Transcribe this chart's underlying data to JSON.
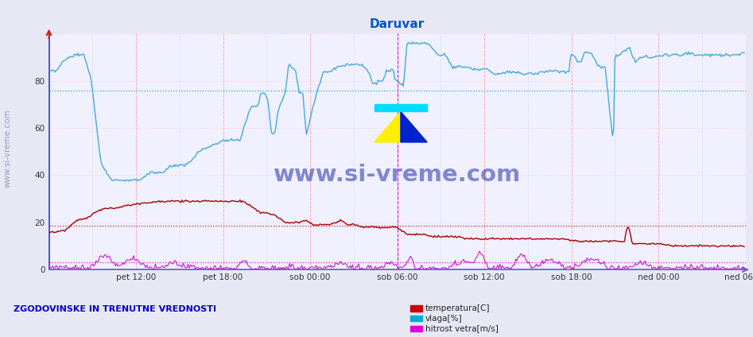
{
  "title": "Daruvar",
  "title_color": "#0055cc",
  "bg_color": "#e8e8f4",
  "plot_bg_color": "#f0f0ff",
  "x_tick_labels": [
    "pet 12:00",
    "pet 18:00",
    "sob 00:00",
    "sob 06:00",
    "sob 12:00",
    "sob 18:00",
    "ned 00:00",
    "ned 06:00"
  ],
  "ylim": [
    0,
    100
  ],
  "legend_labels": [
    "temperatura[C]",
    "vlaga[%]",
    "hitrost vetra[m/s]"
  ],
  "legend_colors": [
    "#cc0000",
    "#00aadd",
    "#dd00dd"
  ],
  "footer_text": "ZGODOVINSKE IN TRENUTNE VREDNOSTI",
  "watermark": "www.si-vreme.com",
  "avg_temp": 18.5,
  "avg_vlaga": 76,
  "avg_wind": 3,
  "n_points": 576,
  "total_hours": 48,
  "tick_hours": [
    6,
    12,
    18,
    24,
    30,
    36,
    42,
    48
  ],
  "minor_tick_hours": [
    3,
    9,
    15,
    21,
    27,
    33,
    39,
    45
  ]
}
